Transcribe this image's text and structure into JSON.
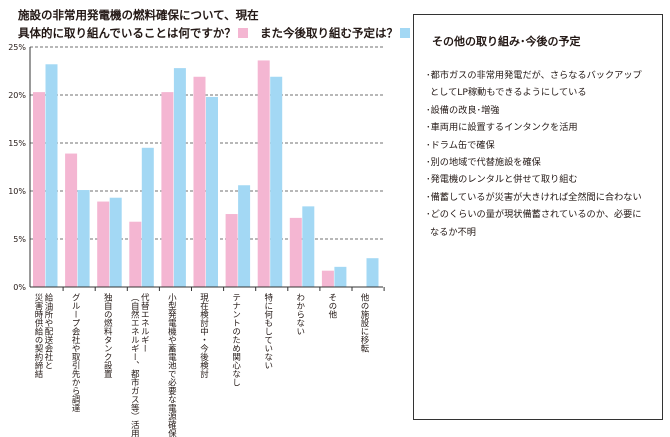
{
  "chart_data": {
    "type": "bar",
    "title_line1": "施設の非常用発電機の燃料確保について、現在",
    "title_line2a": "具体的に取り組んでいることは何ですか？",
    "title_line2b": "また今後取り組む予定は？",
    "ylim": [
      0,
      25
    ],
    "yticks": [
      "0%",
      "5%",
      "10%",
      "15%",
      "20%",
      "25%"
    ],
    "grid": true,
    "categories": [
      [
        "給油所や配送会社と",
        "災害時供給の契約締結"
      ],
      [
        "グループ会社や取引先から調達"
      ],
      [
        "独自の燃料タンク設置"
      ],
      [
        "代替エネルギー",
        "（自然エネルギー、都市ガス等）活用"
      ],
      [
        "小型発電機や蓄電池で必要な電源確保"
      ],
      [
        "現在検討中・今後検討"
      ],
      [
        "テナントのため関心なし"
      ],
      [
        "特に何もしていない"
      ],
      [
        "わからない"
      ],
      [
        "その他"
      ],
      [
        "他の施設に移転"
      ]
    ],
    "series": [
      {
        "name": "現在",
        "color": "#f4b6d2",
        "values": [
          20.3,
          13.9,
          8.9,
          6.8,
          20.3,
          21.9,
          7.6,
          23.6,
          7.2,
          1.7,
          0
        ]
      },
      {
        "name": "今後",
        "color": "#a3d8f4",
        "values": [
          23.2,
          10.1,
          9.3,
          14.5,
          22.8,
          19.8,
          10.6,
          21.9,
          8.4,
          2.1,
          3.0
        ]
      }
    ]
  },
  "sidebox": {
    "title": "その他の取り組み･今後の予定",
    "items": [
      "･都市ガスの非常用発電だが、さらなるバックアップとしてLP稼動もできるようにしている",
      "･設備の改良･増強",
      "･車両用に設置するインタンクを活用",
      "･ドラム缶で確保",
      "･別の地域で代替施設を確保",
      "･発電機のレンタルと併せて取り組む",
      "･備蓄しているが災害が大きければ全然間に合わない",
      "･どのくらいの量が現状備蓄されているのか、必要になるか不明"
    ]
  }
}
